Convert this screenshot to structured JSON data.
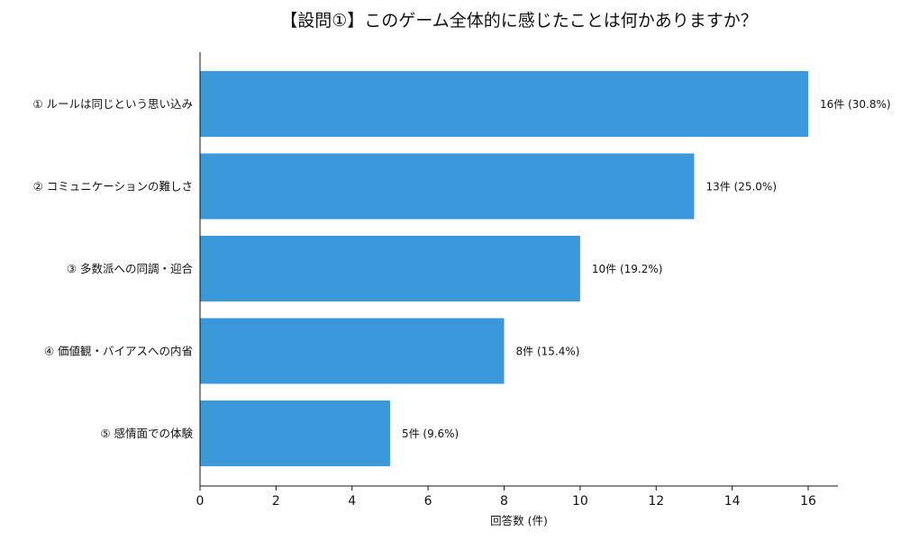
{
  "chart_data": {
    "type": "bar",
    "orientation": "horizontal",
    "title": "【設問①】このゲーム全体的に感じたことは何かありますか？",
    "xlabel": "回答数 (件)",
    "ylabel": "",
    "xlim": [
      0,
      16.8
    ],
    "xticks": [
      0,
      2,
      4,
      6,
      8,
      10,
      12,
      14,
      16
    ],
    "grid": false,
    "bar_color": "#3a98db",
    "categories": [
      "① ルールは同じという思い込み",
      "② コミュニケーションの難しさ",
      "③ 多数派への同調・迎合",
      "④ 価値観・バイアスへの内省",
      "⑤ 感情面での体験"
    ],
    "values": [
      16,
      13,
      10,
      8,
      5
    ],
    "data_labels": [
      "16件 (30.8%)",
      "13件 (25.0%)",
      "10件 (19.2%)",
      "8件 (15.4%)",
      "5件 (9.6%)"
    ]
  }
}
